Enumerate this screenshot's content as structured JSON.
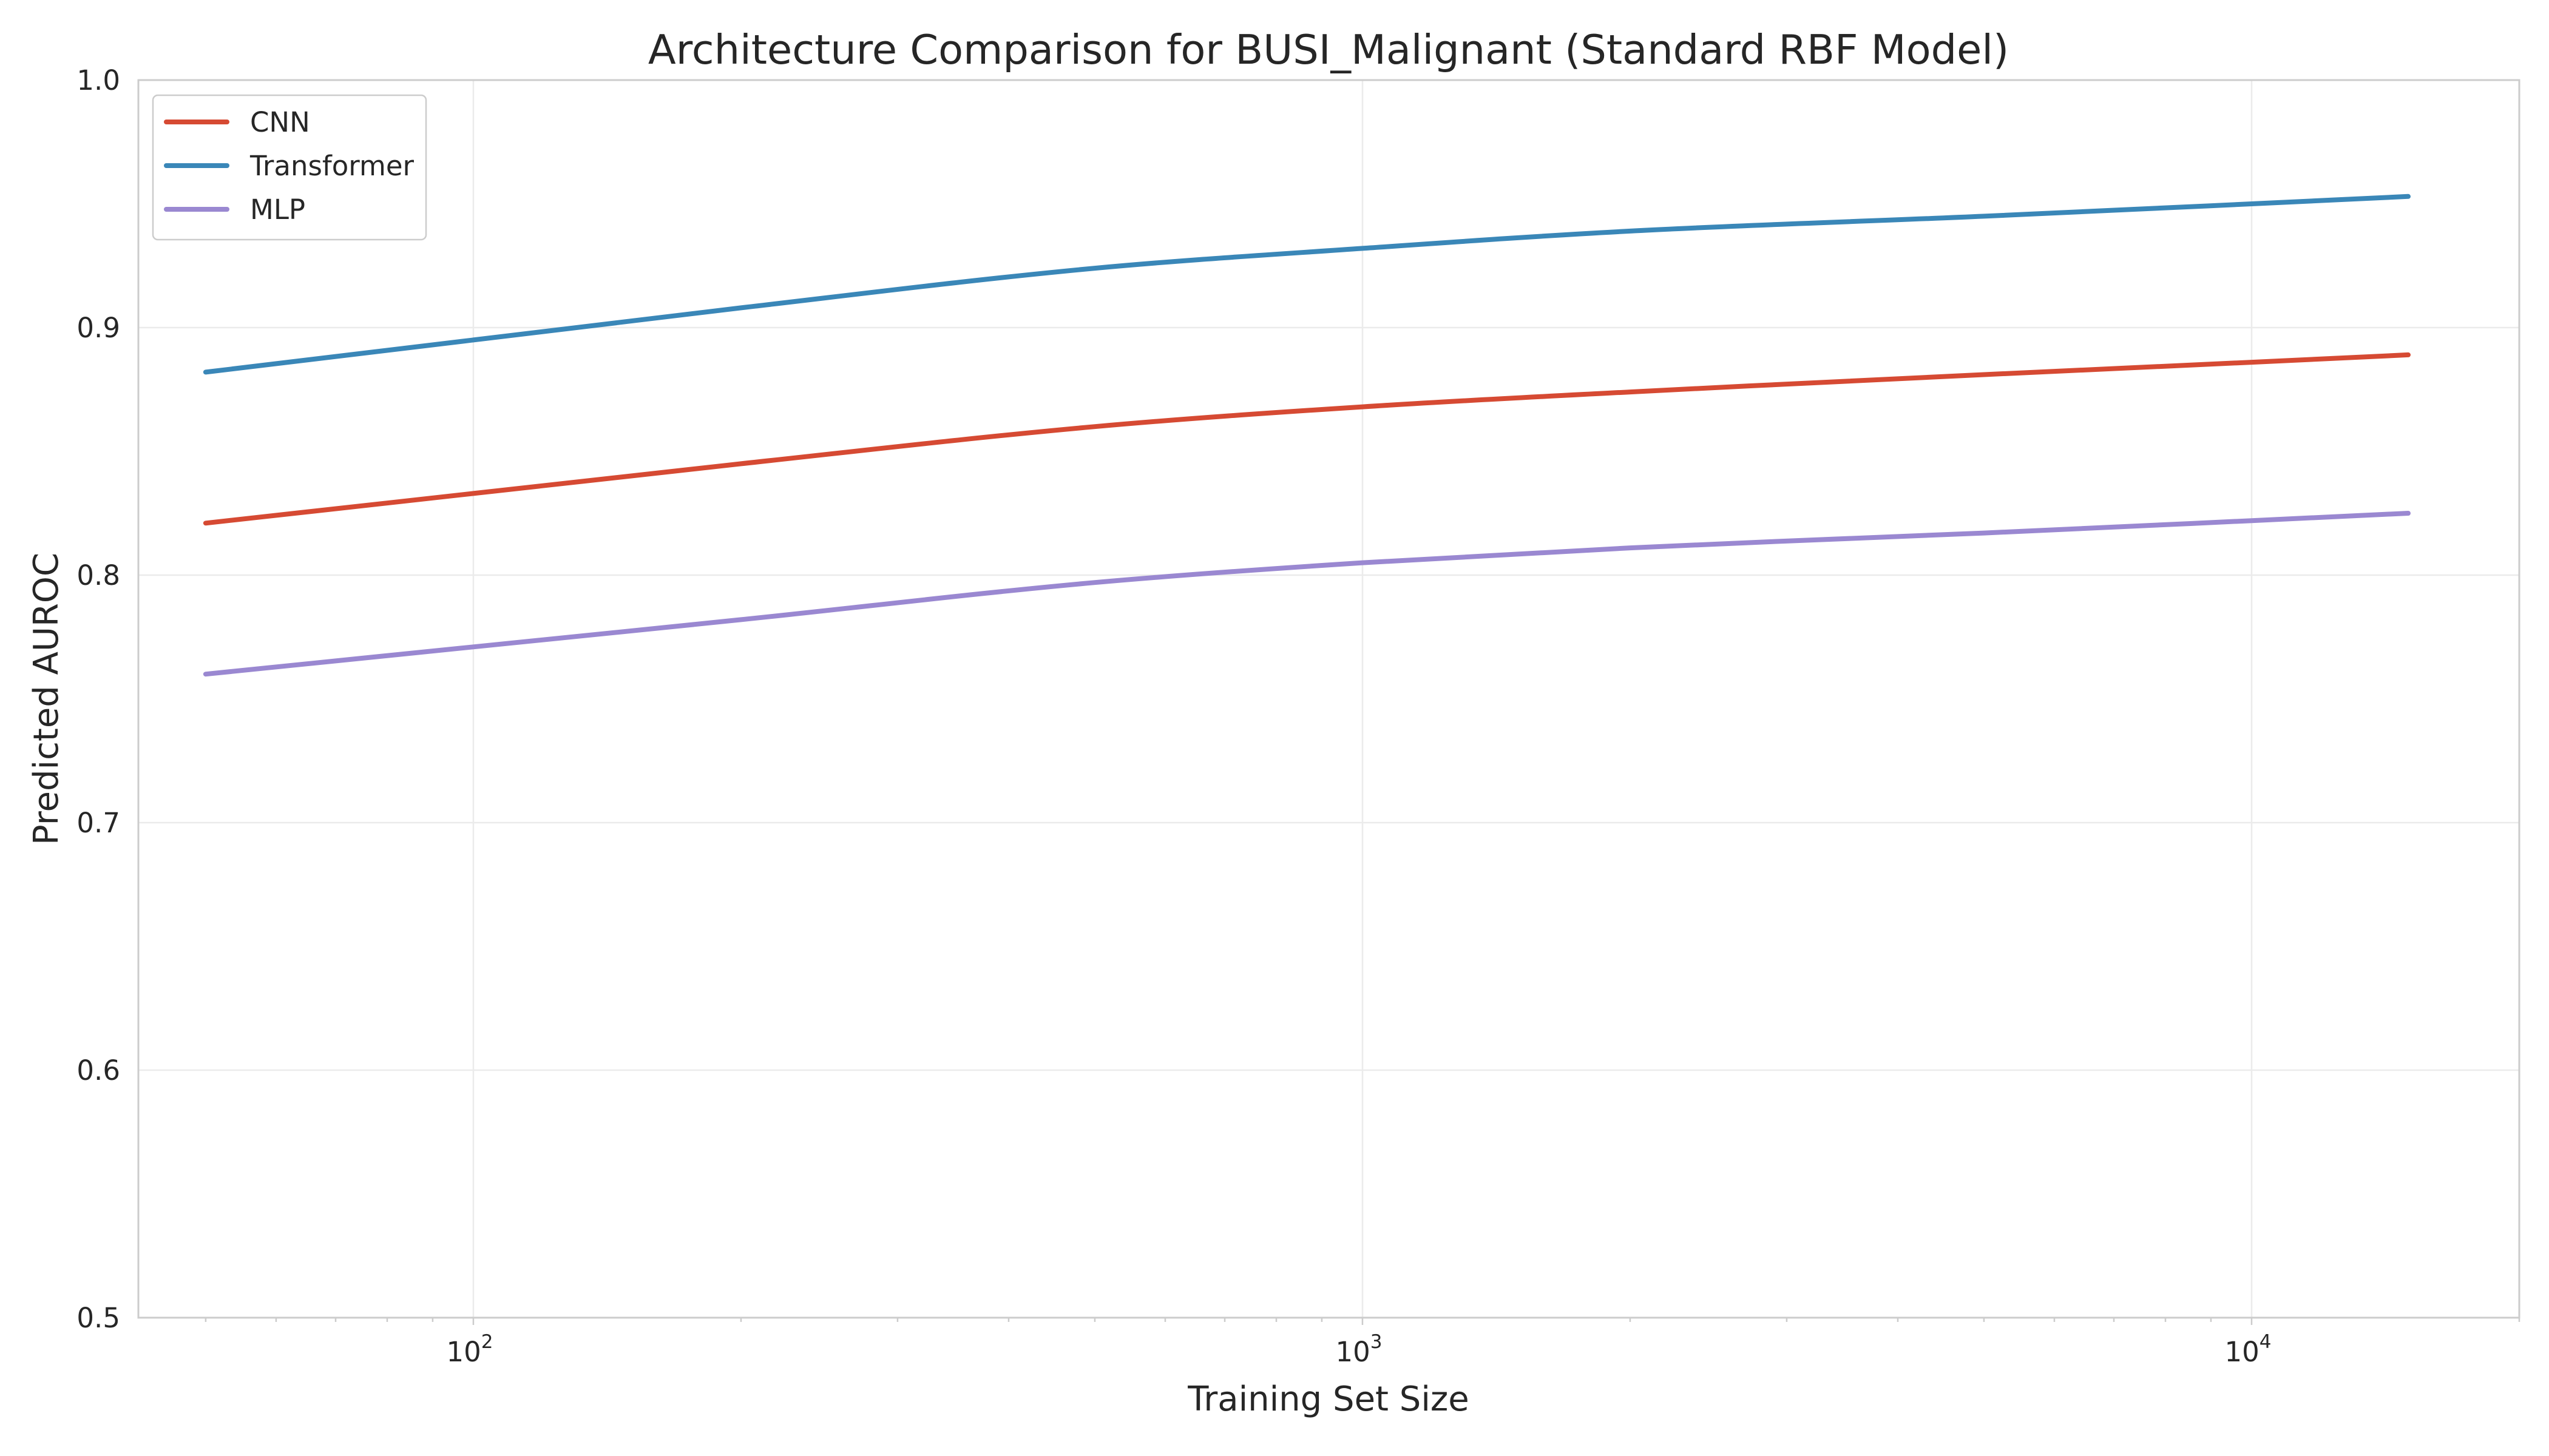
{
  "chart_data": {
    "type": "line",
    "title": "Architecture Comparison for BUSI_Malignant (Standard RBF Model)",
    "xlabel": "Training Set Size",
    "ylabel": "Predicted AUROC",
    "xscale": "log",
    "xlim": [
      42,
      20000
    ],
    "ylim": [
      0.5,
      1.0
    ],
    "xticks": [
      {
        "value": 100,
        "base": "10",
        "exp": "2"
      },
      {
        "value": 1000,
        "base": "10",
        "exp": "3"
      },
      {
        "value": 10000,
        "base": "10",
        "exp": "4"
      }
    ],
    "yticks": [
      {
        "value": 0.5,
        "label": "0.5"
      },
      {
        "value": 0.6,
        "label": "0.6"
      },
      {
        "value": 0.7,
        "label": "0.7"
      },
      {
        "value": 0.8,
        "label": "0.8"
      },
      {
        "value": 0.9,
        "label": "0.9"
      },
      {
        "value": 1.0,
        "label": "1.0"
      }
    ],
    "grid": true,
    "legend_position": "top-left",
    "series": [
      {
        "name": "CNN",
        "color": "#d64a33",
        "x": [
          50,
          100,
          200,
          500,
          1000,
          2000,
          5000,
          10000,
          15000
        ],
        "y": [
          0.821,
          0.833,
          0.845,
          0.86,
          0.868,
          0.874,
          0.881,
          0.886,
          0.889
        ]
      },
      {
        "name": "Transformer",
        "color": "#3a87b8",
        "x": [
          50,
          100,
          200,
          500,
          1000,
          2000,
          5000,
          10000,
          15000
        ],
        "y": [
          0.882,
          0.895,
          0.908,
          0.924,
          0.932,
          0.939,
          0.945,
          0.95,
          0.953
        ]
      },
      {
        "name": "MLP",
        "color": "#9a88d1",
        "x": [
          50,
          100,
          200,
          500,
          1000,
          2000,
          5000,
          10000,
          15000
        ],
        "y": [
          0.76,
          0.771,
          0.782,
          0.797,
          0.805,
          0.811,
          0.817,
          0.822,
          0.825
        ]
      }
    ]
  }
}
